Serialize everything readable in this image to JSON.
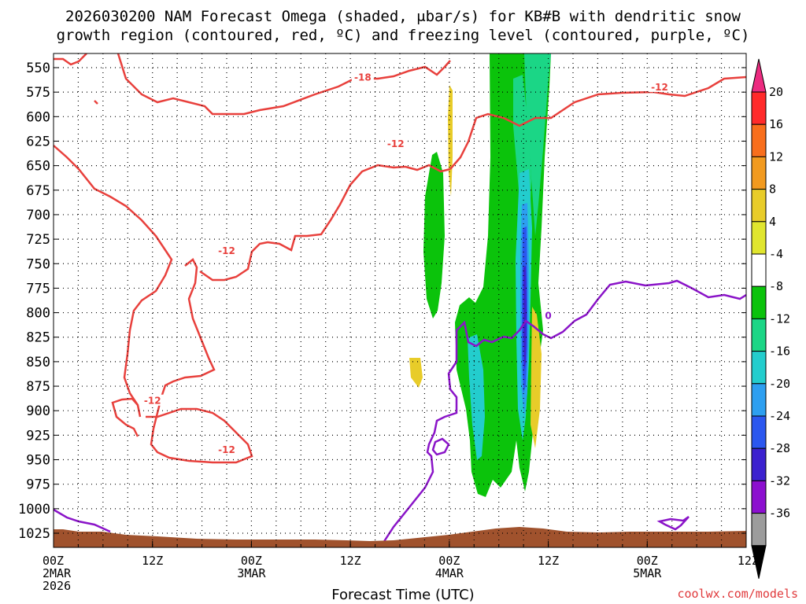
{
  "title": {
    "line1": "2026030200 NAM Forecast Omega (shaded, μbar/s) for KB#B with dendritic snow",
    "line2": "growth region (contoured, red, ºC) and freezing level (contoured, purple, ºC)"
  },
  "chart_data": {
    "type": "time-height",
    "title": "2026030200 NAM Forecast Omega (shaded, μbar/s) for KB#B with dendritic snow growth region (contoured, red, ºC) and freezing level (contoured, purple, ºC)",
    "xlabel": "Forecast Time (UTC)",
    "ylabel": "",
    "xlim": [
      0,
      84
    ],
    "ylim": [
      1040,
      540
    ],
    "x_ticks": [
      {
        "hour": 0,
        "label": "00Z",
        "sub": [
          "2MAR",
          "2026"
        ]
      },
      {
        "hour": 12,
        "label": "12Z",
        "sub": []
      },
      {
        "hour": 24,
        "label": "00Z",
        "sub": [
          "3MAR"
        ]
      },
      {
        "hour": 36,
        "label": "12Z",
        "sub": []
      },
      {
        "hour": 48,
        "label": "00Z",
        "sub": [
          "4MAR"
        ]
      },
      {
        "hour": 60,
        "label": "12Z",
        "sub": []
      },
      {
        "hour": 72,
        "label": "00Z",
        "sub": [
          "5MAR"
        ]
      },
      {
        "hour": 84,
        "label": "12Z",
        "sub": []
      }
    ],
    "y_ticks": [
      "550",
      "575",
      "600",
      "625",
      "650",
      "675",
      "700",
      "725",
      "750",
      "775",
      "800",
      "825",
      "850",
      "875",
      "900",
      "925",
      "950",
      "975",
      "1000",
      "1025"
    ],
    "y_values": [
      550,
      575,
      600,
      625,
      650,
      675,
      700,
      725,
      750,
      775,
      800,
      825,
      850,
      875,
      900,
      925,
      950,
      975,
      1000,
      1025
    ],
    "colorbar": {
      "labels": [
        "20",
        "16",
        "12",
        "8",
        "4",
        "-4",
        "-8",
        "-12",
        "-16",
        "-20",
        "-24",
        "-28",
        "-32",
        "-36"
      ],
      "colors": [
        "#ff2a2a",
        "#f86e1c",
        "#f29a1f",
        "#e8cc29",
        "#e0e52e",
        "#ffffff",
        "#0bc30b",
        "#1bd686",
        "#23cdcd",
        "#2d9ff0",
        "#2b57ef",
        "#3c21cf",
        "#8c0fcf",
        "#9c9c9c"
      ],
      "top_triangle": "#ec2b80",
      "bottom_triangle": "#000000"
    },
    "contour_labels": [
      {
        "text": "-18",
        "hour": 37.5,
        "p": 560
      },
      {
        "text": "-12",
        "hour": 73.5,
        "p": 570
      },
      {
        "text": "-12",
        "hour": 41.5,
        "p": 628
      },
      {
        "text": "-12",
        "hour": 21.0,
        "p": 737
      },
      {
        "text": "-12",
        "hour": 12.0,
        "p": 890
      },
      {
        "text": "-12",
        "hour": 21.0,
        "p": 940
      },
      {
        "text": "0",
        "hour": 60.0,
        "p": 803
      }
    ],
    "series": [
      {
        "name": "Omega",
        "type": "shaded",
        "units": "μbar/s"
      },
      {
        "name": "Dendritic snow growth region",
        "type": "contour",
        "color": "#e8403c",
        "units": "ºC",
        "levels": [
          -18,
          -12
        ]
      },
      {
        "name": "Freezing level",
        "type": "contour",
        "color": "#8a14c8",
        "units": "ºC",
        "levels": [
          0
        ]
      },
      {
        "name": "Terrain",
        "type": "fill",
        "color": "#a0522d"
      }
    ]
  },
  "footer": {
    "credit": "coolwx.com/models"
  }
}
